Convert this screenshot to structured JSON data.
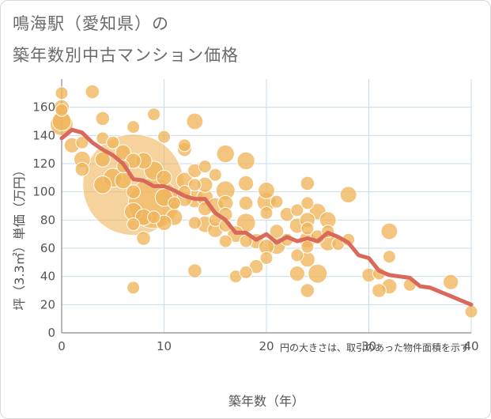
{
  "title_line1": "鳴海駅（愛知県）の",
  "title_line2": "築年数別中古マンション価格",
  "chart_data": {
    "type": "scatter",
    "xlabel": "築年数（年）",
    "ylabel": "坪（3.3㎡）単価（万円）",
    "xlim": [
      0,
      40
    ],
    "ylim": [
      0,
      180
    ],
    "xticks": [
      0,
      10,
      20,
      30,
      40
    ],
    "yticks": [
      0,
      20,
      40,
      60,
      80,
      100,
      120,
      140,
      160
    ],
    "grid": true,
    "note": "円の大きさは、取引のあった物件面積を示す",
    "colors": {
      "bubble": "#f0b55a",
      "trend": "#d9695a",
      "grid": "#c9dbe8"
    },
    "points": [
      {
        "x": 0,
        "y": 170,
        "s": 1.0
      },
      {
        "x": 0,
        "y": 160,
        "s": 1.2
      },
      {
        "x": 0,
        "y": 158,
        "s": 1.0
      },
      {
        "x": 0,
        "y": 150,
        "s": 1.5
      },
      {
        "x": 0,
        "y": 148,
        "s": 1.8
      },
      {
        "x": 1,
        "y": 133,
        "s": 1.2
      },
      {
        "x": 2,
        "y": 135,
        "s": 1.0
      },
      {
        "x": 2,
        "y": 123,
        "s": 1.3
      },
      {
        "x": 2,
        "y": 116,
        "s": 1.1
      },
      {
        "x": 3,
        "y": 171,
        "s": 1.1
      },
      {
        "x": 4,
        "y": 152,
        "s": 1.1
      },
      {
        "x": 4,
        "y": 138,
        "s": 1.0
      },
      {
        "x": 4,
        "y": 123,
        "s": 1.2
      },
      {
        "x": 4,
        "y": 105,
        "s": 1.4
      },
      {
        "x": 5,
        "y": 135,
        "s": 1.0
      },
      {
        "x": 5,
        "y": 110,
        "s": 1.5
      },
      {
        "x": 6,
        "y": 128,
        "s": 1.2
      },
      {
        "x": 6,
        "y": 118,
        "s": 1.0
      },
      {
        "x": 6,
        "y": 108,
        "s": 1.3
      },
      {
        "x": 7,
        "y": 105,
        "s": 8.0
      },
      {
        "x": 7,
        "y": 146,
        "s": 1.0
      },
      {
        "x": 7,
        "y": 122,
        "s": 1.2
      },
      {
        "x": 7,
        "y": 100,
        "s": 1.1
      },
      {
        "x": 7,
        "y": 86,
        "s": 1.4
      },
      {
        "x": 7,
        "y": 77,
        "s": 1.0
      },
      {
        "x": 7,
        "y": 32,
        "s": 1.0
      },
      {
        "x": 8,
        "y": 122,
        "s": 1.3
      },
      {
        "x": 8,
        "y": 82,
        "s": 1.3
      },
      {
        "x": 8,
        "y": 67,
        "s": 1.1
      },
      {
        "x": 9,
        "y": 155,
        "s": 1.0
      },
      {
        "x": 9,
        "y": 115,
        "s": 1.5
      },
      {
        "x": 9,
        "y": 92,
        "s": 4.0
      },
      {
        "x": 9,
        "y": 82,
        "s": 1.0
      },
      {
        "x": 10,
        "y": 139,
        "s": 1.0
      },
      {
        "x": 10,
        "y": 110,
        "s": 1.2
      },
      {
        "x": 10,
        "y": 96,
        "s": 1.4
      },
      {
        "x": 10,
        "y": 78,
        "s": 1.2
      },
      {
        "x": 11,
        "y": 92,
        "s": 1.0
      },
      {
        "x": 11,
        "y": 82,
        "s": 1.3
      },
      {
        "x": 12,
        "y": 130,
        "s": 1.1
      },
      {
        "x": 12,
        "y": 133,
        "s": 1.0
      },
      {
        "x": 12,
        "y": 108,
        "s": 1.3
      },
      {
        "x": 12,
        "y": 100,
        "s": 1.0
      },
      {
        "x": 12,
        "y": 95,
        "s": 1.2
      },
      {
        "x": 13,
        "y": 150,
        "s": 1.3
      },
      {
        "x": 13,
        "y": 115,
        "s": 1.1
      },
      {
        "x": 13,
        "y": 105,
        "s": 1.0
      },
      {
        "x": 13,
        "y": 95,
        "s": 1.4
      },
      {
        "x": 13,
        "y": 78,
        "s": 1.0
      },
      {
        "x": 13,
        "y": 44,
        "s": 1.1
      },
      {
        "x": 14,
        "y": 118,
        "s": 1.0
      },
      {
        "x": 14,
        "y": 105,
        "s": 1.2
      },
      {
        "x": 14,
        "y": 96,
        "s": 1.3
      },
      {
        "x": 14,
        "y": 88,
        "s": 1.1
      },
      {
        "x": 14,
        "y": 77,
        "s": 1.3
      },
      {
        "x": 15,
        "y": 112,
        "s": 1.0
      },
      {
        "x": 15,
        "y": 90,
        "s": 1.3
      },
      {
        "x": 15,
        "y": 80,
        "s": 1.0
      },
      {
        "x": 15,
        "y": 73,
        "s": 1.2
      },
      {
        "x": 16,
        "y": 127,
        "s": 1.4
      },
      {
        "x": 16,
        "y": 101,
        "s": 1.5
      },
      {
        "x": 16,
        "y": 92,
        "s": 1.2
      },
      {
        "x": 16,
        "y": 84,
        "s": 1.1
      },
      {
        "x": 16,
        "y": 76,
        "s": 1.0
      },
      {
        "x": 16,
        "y": 65,
        "s": 1.0
      },
      {
        "x": 17,
        "y": 70,
        "s": 1.3
      },
      {
        "x": 17,
        "y": 40,
        "s": 1.0
      },
      {
        "x": 18,
        "y": 122,
        "s": 1.4
      },
      {
        "x": 18,
        "y": 106,
        "s": 1.2
      },
      {
        "x": 18,
        "y": 92,
        "s": 1.1
      },
      {
        "x": 18,
        "y": 78,
        "s": 1.5
      },
      {
        "x": 18,
        "y": 65,
        "s": 1.0
      },
      {
        "x": 18,
        "y": 43,
        "s": 1.0
      },
      {
        "x": 19,
        "y": 65,
        "s": 1.2
      },
      {
        "x": 19,
        "y": 47,
        "s": 1.1
      },
      {
        "x": 20,
        "y": 101,
        "s": 1.3
      },
      {
        "x": 20,
        "y": 93,
        "s": 1.5
      },
      {
        "x": 20,
        "y": 85,
        "s": 1.0
      },
      {
        "x": 20,
        "y": 61,
        "s": 1.2
      },
      {
        "x": 20,
        "y": 53,
        "s": 1.0
      },
      {
        "x": 21,
        "y": 93,
        "s": 1.0
      },
      {
        "x": 21,
        "y": 72,
        "s": 1.1
      },
      {
        "x": 21,
        "y": 62,
        "s": 1.4
      },
      {
        "x": 22,
        "y": 84,
        "s": 1.1
      },
      {
        "x": 22,
        "y": 66,
        "s": 1.0
      },
      {
        "x": 23,
        "y": 42,
        "s": 1.2
      },
      {
        "x": 23,
        "y": 55,
        "s": 1.0
      },
      {
        "x": 23,
        "y": 76,
        "s": 1.2
      },
      {
        "x": 23,
        "y": 87,
        "s": 1.0
      },
      {
        "x": 24,
        "y": 106,
        "s": 1.1
      },
      {
        "x": 24,
        "y": 92,
        "s": 1.0
      },
      {
        "x": 24,
        "y": 80,
        "s": 1.2
      },
      {
        "x": 24,
        "y": 74,
        "s": 1.0
      },
      {
        "x": 24,
        "y": 66,
        "s": 1.3
      },
      {
        "x": 24,
        "y": 61,
        "s": 1.0
      },
      {
        "x": 24,
        "y": 52,
        "s": 1.2
      },
      {
        "x": 24,
        "y": 30,
        "s": 1.1
      },
      {
        "x": 25,
        "y": 86,
        "s": 1.3
      },
      {
        "x": 25,
        "y": 68,
        "s": 1.1
      },
      {
        "x": 25,
        "y": 42,
        "s": 1.5
      },
      {
        "x": 26,
        "y": 80,
        "s": 1.3
      },
      {
        "x": 26,
        "y": 72,
        "s": 1.0
      },
      {
        "x": 26,
        "y": 64,
        "s": 1.3
      },
      {
        "x": 27,
        "y": 63,
        "s": 1.0
      },
      {
        "x": 28,
        "y": 98,
        "s": 1.3
      },
      {
        "x": 28,
        "y": 66,
        "s": 1.0
      },
      {
        "x": 30,
        "y": 41,
        "s": 1.1
      },
      {
        "x": 31,
        "y": 42,
        "s": 1.0
      },
      {
        "x": 31,
        "y": 30,
        "s": 1.1
      },
      {
        "x": 32,
        "y": 72,
        "s": 1.3
      },
      {
        "x": 32,
        "y": 54,
        "s": 1.0
      },
      {
        "x": 32,
        "y": 33,
        "s": 1.2
      },
      {
        "x": 34,
        "y": 34,
        "s": 1.0
      },
      {
        "x": 38,
        "y": 36,
        "s": 1.2
      },
      {
        "x": 40,
        "y": 15,
        "s": 1.0
      }
    ],
    "trend": [
      {
        "x": 0,
        "y": 138
      },
      {
        "x": 1,
        "y": 144
      },
      {
        "x": 2,
        "y": 142
      },
      {
        "x": 3,
        "y": 135
      },
      {
        "x": 4,
        "y": 130
      },
      {
        "x": 5,
        "y": 126
      },
      {
        "x": 6,
        "y": 120
      },
      {
        "x": 7,
        "y": 109
      },
      {
        "x": 8,
        "y": 108
      },
      {
        "x": 9,
        "y": 104
      },
      {
        "x": 10,
        "y": 104
      },
      {
        "x": 11,
        "y": 101
      },
      {
        "x": 12,
        "y": 97
      },
      {
        "x": 13,
        "y": 95
      },
      {
        "x": 14,
        "y": 95
      },
      {
        "x": 15,
        "y": 85
      },
      {
        "x": 16,
        "y": 80
      },
      {
        "x": 17,
        "y": 71
      },
      {
        "x": 18,
        "y": 71
      },
      {
        "x": 19,
        "y": 66
      },
      {
        "x": 20,
        "y": 70
      },
      {
        "x": 21,
        "y": 64
      },
      {
        "x": 22,
        "y": 68
      },
      {
        "x": 23,
        "y": 65
      },
      {
        "x": 24,
        "y": 67
      },
      {
        "x": 25,
        "y": 65
      },
      {
        "x": 26,
        "y": 71
      },
      {
        "x": 27,
        "y": 68
      },
      {
        "x": 28,
        "y": 64
      },
      {
        "x": 29,
        "y": 55
      },
      {
        "x": 30,
        "y": 53
      },
      {
        "x": 31,
        "y": 44
      },
      {
        "x": 32,
        "y": 41
      },
      {
        "x": 33,
        "y": 40
      },
      {
        "x": 34,
        "y": 39
      },
      {
        "x": 35,
        "y": 33
      },
      {
        "x": 36,
        "y": 32
      },
      {
        "x": 37,
        "y": 29
      },
      {
        "x": 38,
        "y": 26
      },
      {
        "x": 39,
        "y": 23
      },
      {
        "x": 40,
        "y": 20
      }
    ]
  }
}
